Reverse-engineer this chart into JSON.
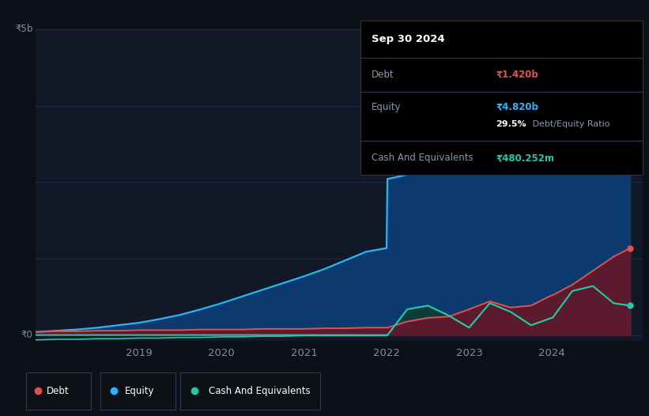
{
  "background_color": "#0d1117",
  "plot_bg": "#111827",
  "grid_color": "#1e2d45",
  "tooltip": {
    "date": "Sep 30 2024",
    "debt_label": "Debt",
    "debt_value": "₹1.420b",
    "debt_color": "#e05252",
    "equity_label": "Equity",
    "equity_value": "₹4.820b",
    "equity_color": "#29b6f6",
    "ratio_bold": "29.5%",
    "ratio_rest": " Debt/Equity Ratio",
    "cash_label": "Cash And Equivalents",
    "cash_value": "₹480.252m",
    "cash_color": "#26c6a6"
  },
  "ylabel_top": "₹5b",
  "ylabel_zero": "₹0",
  "x_ticks": [
    "2019",
    "2020",
    "2021",
    "2022",
    "2023",
    "2024"
  ],
  "x_tick_pos": [
    2019,
    2020,
    2021,
    2022,
    2023,
    2024
  ],
  "equity_color": "#29b6f6",
  "equity_fill": "#0d3a6e",
  "debt_color": "#e05252",
  "debt_fill": "#5c1a2e",
  "cash_color": "#26c6a6",
  "cash_fill": "#0d3d3a",
  "time_points": [
    2017.75,
    2018.0,
    2018.25,
    2018.5,
    2018.75,
    2019.0,
    2019.25,
    2019.5,
    2019.75,
    2020.0,
    2020.25,
    2020.5,
    2020.75,
    2021.0,
    2021.25,
    2021.5,
    2021.75,
    2022.0,
    2022.01,
    2022.25,
    2022.5,
    2022.75,
    2023.0,
    2023.25,
    2023.5,
    2023.75,
    2024.0,
    2024.01,
    2024.25,
    2024.5,
    2024.75,
    2024.95
  ],
  "equity_values": [
    0.05,
    0.07,
    0.09,
    0.12,
    0.16,
    0.2,
    0.26,
    0.33,
    0.42,
    0.52,
    0.63,
    0.74,
    0.85,
    0.96,
    1.08,
    1.22,
    1.36,
    1.42,
    2.55,
    2.62,
    2.68,
    2.74,
    2.8,
    2.84,
    2.88,
    2.94,
    3.02,
    3.85,
    4.1,
    4.45,
    4.72,
    4.82
  ],
  "debt_values": [
    0.05,
    0.06,
    0.06,
    0.07,
    0.07,
    0.08,
    0.08,
    0.08,
    0.09,
    0.09,
    0.09,
    0.1,
    0.1,
    0.1,
    0.11,
    0.11,
    0.12,
    0.12,
    0.12,
    0.22,
    0.28,
    0.3,
    0.42,
    0.55,
    0.45,
    0.48,
    0.65,
    0.65,
    0.82,
    1.05,
    1.28,
    1.42
  ],
  "cash_values": [
    -0.08,
    -0.07,
    -0.07,
    -0.06,
    -0.06,
    -0.05,
    -0.05,
    -0.04,
    -0.04,
    -0.03,
    -0.03,
    -0.02,
    -0.02,
    -0.01,
    -0.01,
    -0.01,
    -0.01,
    -0.01,
    -0.01,
    0.42,
    0.48,
    0.32,
    0.12,
    0.52,
    0.38,
    0.16,
    0.28,
    0.28,
    0.72,
    0.8,
    0.52,
    0.48
  ],
  "ylim": [
    -0.1,
    5.0
  ],
  "xlim": [
    2017.75,
    2025.1
  ]
}
